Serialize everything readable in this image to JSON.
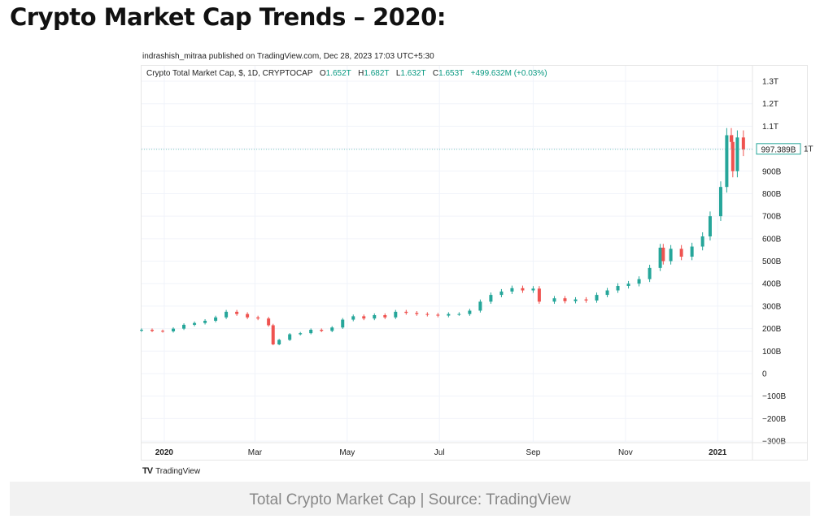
{
  "page_title": "Crypto Market Cap Trends – 2020:",
  "published": "indrashish_mitraa published on TradingView.com, Dec 28, 2023 17:03 UTC+5:30",
  "legend": {
    "symbol": "Crypto Total Market Cap, $, 1D, CRYPTOCAP",
    "o_label": "O",
    "o": "1.652T",
    "h_label": "H",
    "h": "1.682T",
    "l_label": "L",
    "l": "1.632T",
    "c_label": "C",
    "c": "1.653T",
    "change": "+499.632M (+0.03%)"
  },
  "logo_text": "TradingView",
  "caption": "Total Crypto Market Cap | Source: TradingView",
  "colors": {
    "up": "#26a69a",
    "down": "#ef5350",
    "grid": "#f0f3fa",
    "label": "#089981"
  },
  "chart_data": {
    "type": "candlestick",
    "unit": "B",
    "ylim": [
      -300,
      1300
    ],
    "y_ticks": [
      {
        "v": 1300,
        "label": "1.3T"
      },
      {
        "v": 1200,
        "label": "1.2T"
      },
      {
        "v": 1100,
        "label": "1.1T"
      },
      {
        "v": 1000,
        "label": "1T"
      },
      {
        "v": 900,
        "label": "900B"
      },
      {
        "v": 800,
        "label": "800B"
      },
      {
        "v": 700,
        "label": "700B"
      },
      {
        "v": 600,
        "label": "600B"
      },
      {
        "v": 500,
        "label": "500B"
      },
      {
        "v": 400,
        "label": "400B"
      },
      {
        "v": 300,
        "label": "300B"
      },
      {
        "v": 200,
        "label": "200B"
      },
      {
        "v": 100,
        "label": "100B"
      },
      {
        "v": 0,
        "label": "0"
      },
      {
        "v": -100,
        "label": "−100B"
      },
      {
        "v": -200,
        "label": "−200B"
      },
      {
        "v": -300,
        "label": "−300B"
      }
    ],
    "x_range": [
      "2019-12-17",
      "2021-01-24"
    ],
    "x_ticks": [
      {
        "date": "2020-01-01",
        "label": "2020",
        "bold": true
      },
      {
        "date": "2020-03-01",
        "label": "Mar"
      },
      {
        "date": "2020-05-01",
        "label": "May"
      },
      {
        "date": "2020-07-01",
        "label": "Jul"
      },
      {
        "date": "2020-09-01",
        "label": "Sep"
      },
      {
        "date": "2020-11-01",
        "label": "Nov"
      },
      {
        "date": "2021-01-01",
        "label": "2021",
        "bold": true
      }
    ],
    "last_price_label": "997.389B",
    "closes": [
      [
        "2019-12-17",
        195
      ],
      [
        "2019-12-24",
        190
      ],
      [
        "2019-12-31",
        188
      ],
      [
        "2020-01-07",
        200
      ],
      [
        "2020-01-14",
        217
      ],
      [
        "2020-01-21",
        225
      ],
      [
        "2020-01-28",
        235
      ],
      [
        "2020-02-04",
        250
      ],
      [
        "2020-02-11",
        275
      ],
      [
        "2020-02-18",
        265
      ],
      [
        "2020-02-25",
        250
      ],
      [
        "2020-03-03",
        245
      ],
      [
        "2020-03-10",
        215
      ],
      [
        "2020-03-13",
        130
      ],
      [
        "2020-03-17",
        150
      ],
      [
        "2020-03-24",
        175
      ],
      [
        "2020-03-31",
        180
      ],
      [
        "2020-04-07",
        195
      ],
      [
        "2020-04-14",
        190
      ],
      [
        "2020-04-21",
        205
      ],
      [
        "2020-04-28",
        240
      ],
      [
        "2020-05-05",
        255
      ],
      [
        "2020-05-12",
        245
      ],
      [
        "2020-05-19",
        260
      ],
      [
        "2020-05-26",
        250
      ],
      [
        "2020-06-02",
        275
      ],
      [
        "2020-06-09",
        270
      ],
      [
        "2020-06-16",
        265
      ],
      [
        "2020-06-23",
        262
      ],
      [
        "2020-06-30",
        258
      ],
      [
        "2020-07-07",
        265
      ],
      [
        "2020-07-14",
        265
      ],
      [
        "2020-07-21",
        280
      ],
      [
        "2020-07-28",
        320
      ],
      [
        "2020-08-04",
        350
      ],
      [
        "2020-08-11",
        365
      ],
      [
        "2020-08-18",
        380
      ],
      [
        "2020-08-25",
        370
      ],
      [
        "2020-09-01",
        378
      ],
      [
        "2020-09-05",
        320
      ],
      [
        "2020-09-15",
        335
      ],
      [
        "2020-09-22",
        322
      ],
      [
        "2020-09-29",
        330
      ],
      [
        "2020-10-06",
        325
      ],
      [
        "2020-10-13",
        350
      ],
      [
        "2020-10-20",
        370
      ],
      [
        "2020-10-27",
        390
      ],
      [
        "2020-11-03",
        400
      ],
      [
        "2020-11-10",
        420
      ],
      [
        "2020-11-17",
        470
      ],
      [
        "2020-11-24",
        560
      ],
      [
        "2020-11-26",
        500
      ],
      [
        "2020-12-01",
        555
      ],
      [
        "2020-12-08",
        520
      ],
      [
        "2020-12-15",
        565
      ],
      [
        "2020-12-22",
        610
      ],
      [
        "2020-12-27",
        700
      ],
      [
        "2021-01-03",
        830
      ],
      [
        "2021-01-07",
        1060
      ],
      [
        "2021-01-10",
        1030
      ],
      [
        "2021-01-11",
        900
      ],
      [
        "2021-01-14",
        1050
      ],
      [
        "2021-01-18",
        997.389
      ]
    ]
  }
}
